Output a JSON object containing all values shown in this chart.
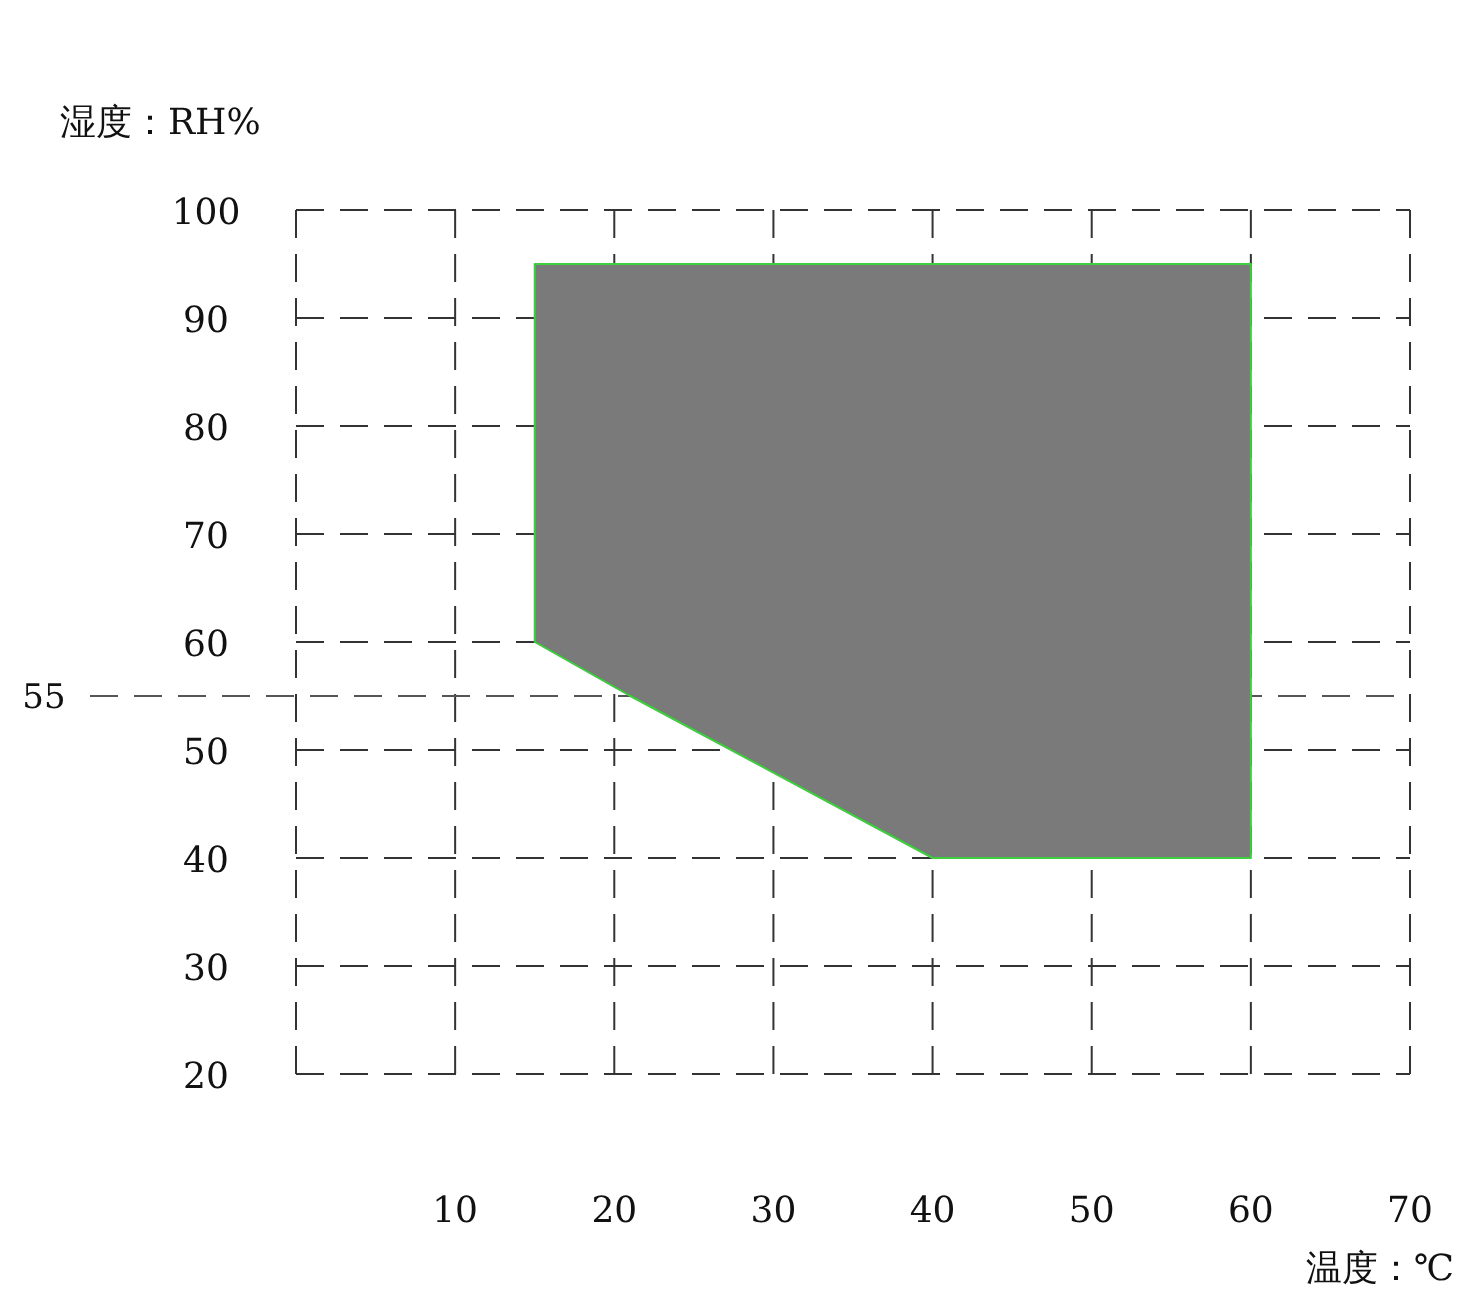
{
  "chart_data": {
    "type": "area",
    "ylabel": "湿度：RH%",
    "xlabel": "温度：℃",
    "series": [
      {
        "color": "#7a7a7a",
        "x": [
          15,
          60,
          60,
          40,
          21,
          15
        ],
        "values": [
          95,
          95,
          40,
          40,
          55,
          60
        ]
      }
    ],
    "xlim": [
      0,
      70
    ],
    "xticks": [
      {
        "value": 0,
        "label": null
      },
      10,
      20,
      30,
      40,
      50,
      60,
      70
    ],
    "ylim": [
      20,
      100
    ],
    "yticks": [
      20,
      30,
      40,
      50,
      60,
      70,
      80,
      90,
      100
    ],
    "grid": true,
    "ref_lines": [
      {
        "axis": "y",
        "value": 55,
        "label": "55"
      }
    ]
  }
}
